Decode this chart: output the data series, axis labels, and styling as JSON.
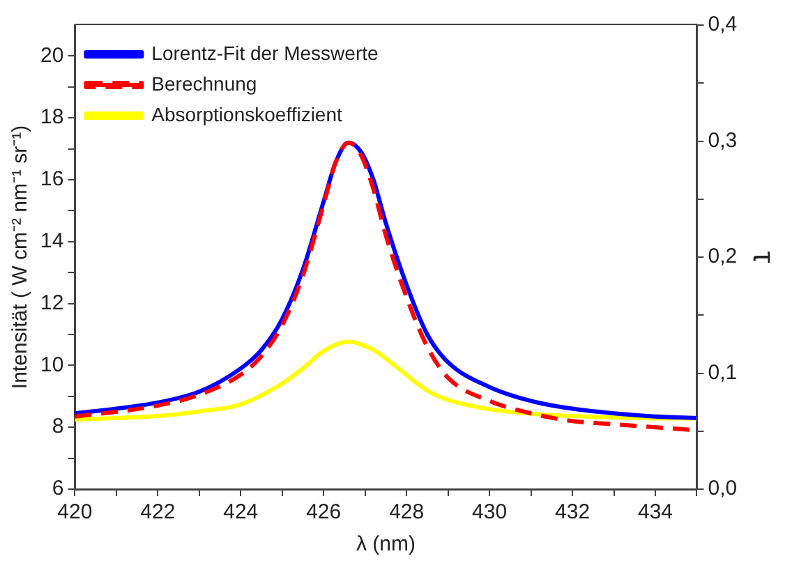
{
  "chart_data": {
    "type": "line",
    "xlabel": "λ (nm)",
    "ylabel": "Intensität ( W cm⁻² nm⁻¹ sr⁻¹)",
    "y2label": "τ",
    "xlim": [
      420,
      435
    ],
    "xticks": [
      420,
      {
        "value": 421,
        "label": null
      },
      422,
      {
        "value": 423,
        "label": null
      },
      424,
      {
        "value": 425,
        "label": null
      },
      426,
      {
        "value": 427,
        "label": null
      },
      428,
      {
        "value": 429,
        "label": null
      },
      430,
      {
        "value": 431,
        "label": null
      },
      432,
      {
        "value": 433,
        "label": null
      },
      434,
      {
        "value": 435,
        "label": null
      }
    ],
    "ylim": [
      6,
      21
    ],
    "yticks": [
      6,
      {
        "value": 7,
        "label": null
      },
      8,
      {
        "value": 9,
        "label": null
      },
      10,
      {
        "value": 11,
        "label": null
      },
      12,
      {
        "value": 13,
        "label": null
      },
      14,
      {
        "value": 15,
        "label": null
      },
      16,
      {
        "value": 17,
        "label": null
      },
      18,
      {
        "value": 19,
        "label": null
      },
      20
    ],
    "y2lim": [
      0,
      0.4
    ],
    "y2ticks": [
      {
        "value": 0,
        "label": "0,0"
      },
      {
        "value": 0.05,
        "label": null
      },
      {
        "value": 0.1,
        "label": "0,1"
      },
      {
        "value": 0.15,
        "label": null
      },
      {
        "value": 0.2,
        "label": "0,2"
      },
      {
        "value": 0.25,
        "label": null
      },
      {
        "value": 0.3,
        "label": "0,3"
      },
      {
        "value": 0.35,
        "label": null
      },
      {
        "value": 0.4,
        "label": "0,4"
      }
    ],
    "grid": false,
    "legend": "top left",
    "series": [
      {
        "name": "Lorentz-Fit der Messwerte",
        "color": "#0000ff",
        "line_style": "solid",
        "x": [
          420,
          421,
          422,
          423,
          424,
          424.5,
          425,
          425.5,
          426,
          426.3,
          426.6,
          426.9,
          427.2,
          427.5,
          428,
          428.5,
          429,
          430,
          431,
          432,
          433,
          434,
          435
        ],
        "values": [
          8.45,
          8.6,
          8.8,
          9.15,
          9.9,
          10.5,
          11.5,
          13.1,
          15.3,
          16.6,
          17.2,
          16.9,
          16.0,
          14.6,
          12.6,
          11.0,
          10.1,
          9.3,
          8.85,
          8.6,
          8.45,
          8.35,
          8.3
        ]
      },
      {
        "name": "Berechnung",
        "color": "#ff0000",
        "line_style": "dashed",
        "x": [
          420,
          421,
          422,
          423,
          424,
          424.5,
          425,
          425.5,
          426,
          426.3,
          426.6,
          426.9,
          427.2,
          427.5,
          428,
          428.5,
          429,
          430,
          431,
          432,
          433,
          434,
          435
        ],
        "values": [
          8.35,
          8.5,
          8.7,
          9.05,
          9.7,
          10.3,
          11.3,
          12.9,
          15.2,
          16.6,
          17.2,
          16.8,
          15.7,
          14.2,
          12.2,
          10.6,
          9.6,
          8.85,
          8.45,
          8.2,
          8.1,
          8.0,
          7.9
        ]
      },
      {
        "name": "Absorptionskoeffizient",
        "color": "#ffff00",
        "line_style": "solid",
        "axis": "y2",
        "x": [
          420,
          422,
          423,
          424,
          425,
          425.5,
          426,
          426.6,
          427.2,
          427.7,
          428.5,
          429,
          430,
          431,
          432,
          434,
          435
        ],
        "values": [
          0.06,
          0.063,
          0.067,
          0.073,
          0.091,
          0.104,
          0.119,
          0.127,
          0.12,
          0.107,
          0.085,
          0.077,
          0.069,
          0.065,
          0.063,
          0.061,
          0.061
        ]
      }
    ]
  }
}
